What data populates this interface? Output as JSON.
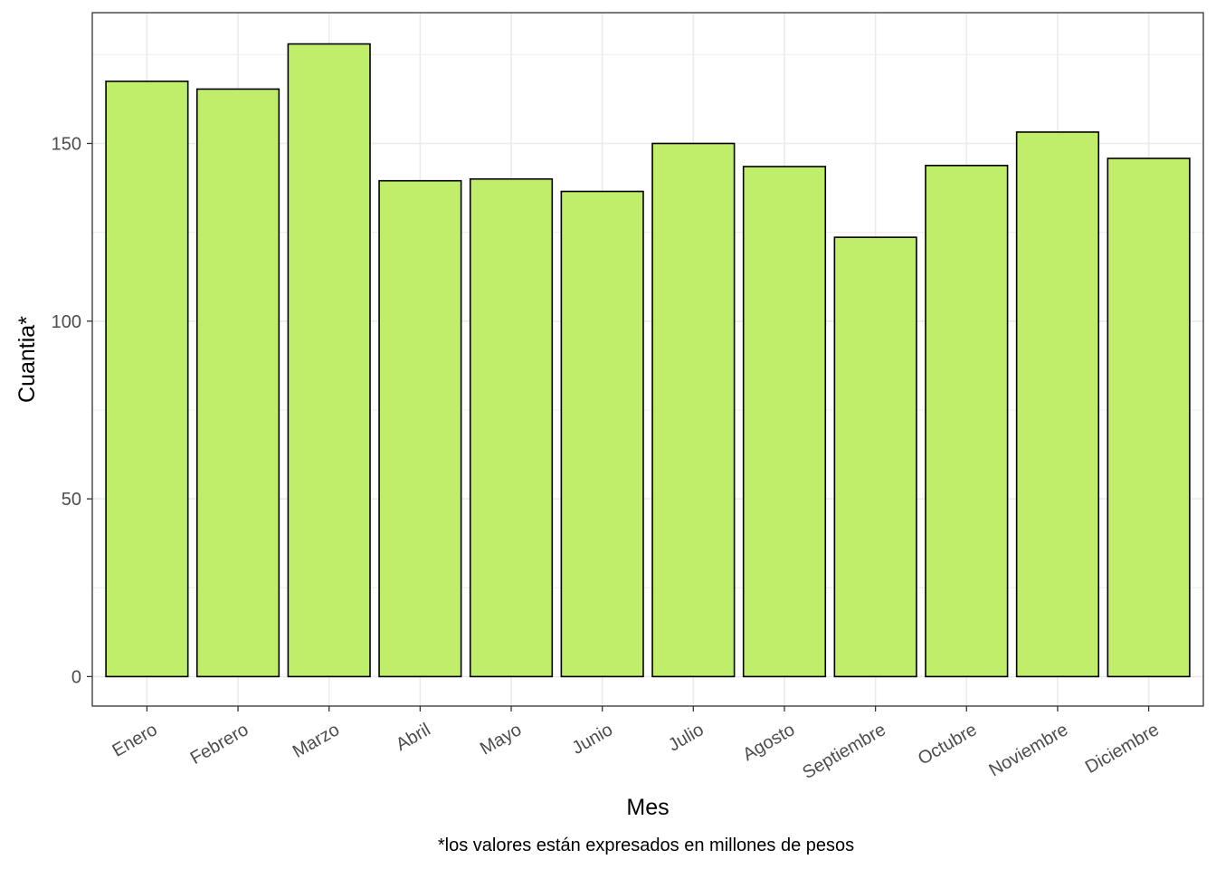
{
  "chart_data": {
    "type": "bar",
    "categories": [
      "Enero",
      "Febrero",
      "Marzo",
      "Abril",
      "Mayo",
      "Junio",
      "Julio",
      "Agosto",
      "Septiembre",
      "Octubre",
      "Noviembre",
      "Diciembre"
    ],
    "values": [
      167.5,
      165.3,
      178,
      139.5,
      140,
      136.5,
      150,
      143.5,
      123.6,
      143.8,
      153.2,
      145.8
    ],
    "xlabel": "Mes",
    "ylabel": "Cuantia*",
    "caption": "*los valores están expresados en millones de pesos",
    "ylim": [
      -8.3,
      186.8
    ],
    "yticks": [
      0,
      50,
      100,
      150
    ],
    "grid": true,
    "x_tick_rotation_deg": -30,
    "colors": {
      "bar_fill": "#c0ee6a",
      "bar_stroke": "#000000",
      "grid": "#ebebeb",
      "panel_border": "#333333",
      "tick_text": "#4d4d4d"
    }
  }
}
